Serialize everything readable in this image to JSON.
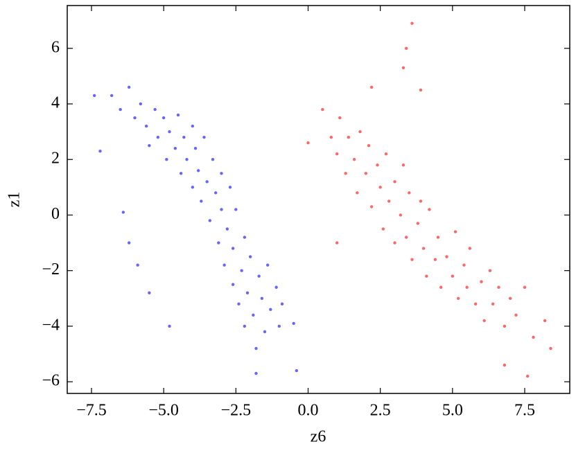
{
  "chart_data": {
    "type": "scatter",
    "x_label": "z6",
    "y_label": "z1",
    "xlim": [
      -8.34,
      9.06
    ],
    "ylim": [
      -6.42,
      7.54
    ],
    "xticks": [
      {
        "value": -7.5,
        "label": "−7.5"
      },
      {
        "value": -5.0,
        "label": "−5.0"
      },
      {
        "value": -2.5,
        "label": "−2.5"
      },
      {
        "value": 0,
        "label": "0.0"
      },
      2.5,
      {
        "value": 5.0,
        "label": "5.0"
      },
      7.5
    ],
    "yticks": [
      {
        "value": -6,
        "label": "−6"
      },
      {
        "value": -4,
        "label": "−4"
      },
      {
        "value": -2,
        "label": "−2"
      },
      0,
      2,
      4,
      6
    ],
    "series": [
      {
        "color": "#0000ff",
        "x": [
          -6.8,
          -6.5,
          -6.2,
          -6.0,
          -5.8,
          -5.6,
          -5.5,
          -5.3,
          -5.2,
          -5.0,
          -4.9,
          -4.8,
          -4.6,
          -4.5,
          -4.4,
          -4.3,
          -4.2,
          -4.0,
          -4.0,
          -3.9,
          -3.8,
          -3.7,
          -3.6,
          -3.5,
          -3.4,
          -3.3,
          -3.2,
          -3.1,
          -3.0,
          -3.0,
          -2.9,
          -2.8,
          -2.7,
          -2.6,
          -2.6,
          -2.5,
          -2.4,
          -2.3,
          -2.2,
          -2.2,
          -2.1,
          -2.0,
          -1.9,
          -1.8,
          -1.7,
          -1.6,
          -1.5,
          -1.4,
          -1.3,
          -1.1,
          -1.0,
          -0.9,
          -7.4,
          -7.2,
          -6.4,
          -6.2,
          -5.9,
          -5.5,
          -4.8,
          -0.5,
          -1.8,
          -0.4
        ],
        "y": [
          4.3,
          3.8,
          4.6,
          3.5,
          4.0,
          3.2,
          2.5,
          3.8,
          2.8,
          3.5,
          2.0,
          3.0,
          2.4,
          3.6,
          1.5,
          2.8,
          2.0,
          3.2,
          1.0,
          2.4,
          1.6,
          0.5,
          2.8,
          1.2,
          -0.2,
          2.0,
          0.8,
          -1.0,
          1.5,
          0.2,
          -1.8,
          -0.5,
          1.0,
          -2.5,
          -1.2,
          0.2,
          -3.2,
          -2.0,
          -0.8,
          -4.0,
          -2.8,
          -1.5,
          -3.6,
          -4.8,
          -2.2,
          -3.0,
          -4.2,
          -1.8,
          -3.4,
          -2.6,
          -4.0,
          -3.2,
          4.3,
          2.3,
          0.1,
          -1.0,
          -1.8,
          -2.8,
          -4.0,
          -3.9,
          -5.7,
          -5.6
        ]
      },
      {
        "color": "#ff0000",
        "x": [
          0.5,
          0.8,
          1.0,
          1.1,
          1.3,
          1.4,
          1.6,
          1.7,
          1.8,
          2.0,
          2.1,
          2.2,
          2.4,
          2.5,
          2.6,
          2.7,
          2.8,
          3.0,
          3.0,
          3.2,
          3.3,
          3.4,
          3.5,
          3.6,
          3.8,
          3.9,
          4.0,
          4.1,
          4.2,
          4.4,
          4.5,
          4.6,
          4.8,
          5.0,
          5.1,
          5.2,
          5.4,
          5.5,
          5.6,
          5.8,
          6.0,
          6.1,
          6.3,
          6.4,
          6.6,
          6.8,
          7.0,
          7.2,
          7.5,
          7.8,
          8.2,
          8.4,
          3.6,
          3.4,
          3.3,
          3.9,
          2.2,
          0.0,
          1.0,
          6.8,
          7.6
        ],
        "y": [
          3.8,
          2.8,
          2.2,
          3.5,
          1.5,
          2.8,
          2.0,
          0.8,
          3.0,
          1.5,
          2.5,
          0.3,
          1.8,
          1.0,
          -0.5,
          2.2,
          0.5,
          1.2,
          -1.0,
          0.0,
          1.8,
          -0.8,
          0.8,
          -1.6,
          -0.3,
          0.5,
          -1.2,
          -2.2,
          0.2,
          -1.6,
          -0.8,
          -2.6,
          -1.5,
          -2.2,
          -0.6,
          -3.0,
          -1.8,
          -2.6,
          -1.2,
          -3.2,
          -2.4,
          -3.8,
          -2.0,
          -3.2,
          -2.6,
          -4.0,
          -3.0,
          -3.6,
          -2.6,
          -4.4,
          -3.8,
          -4.8,
          6.9,
          6.0,
          5.3,
          4.5,
          4.6,
          2.6,
          -1.0,
          -5.4,
          -5.8
        ]
      }
    ]
  }
}
